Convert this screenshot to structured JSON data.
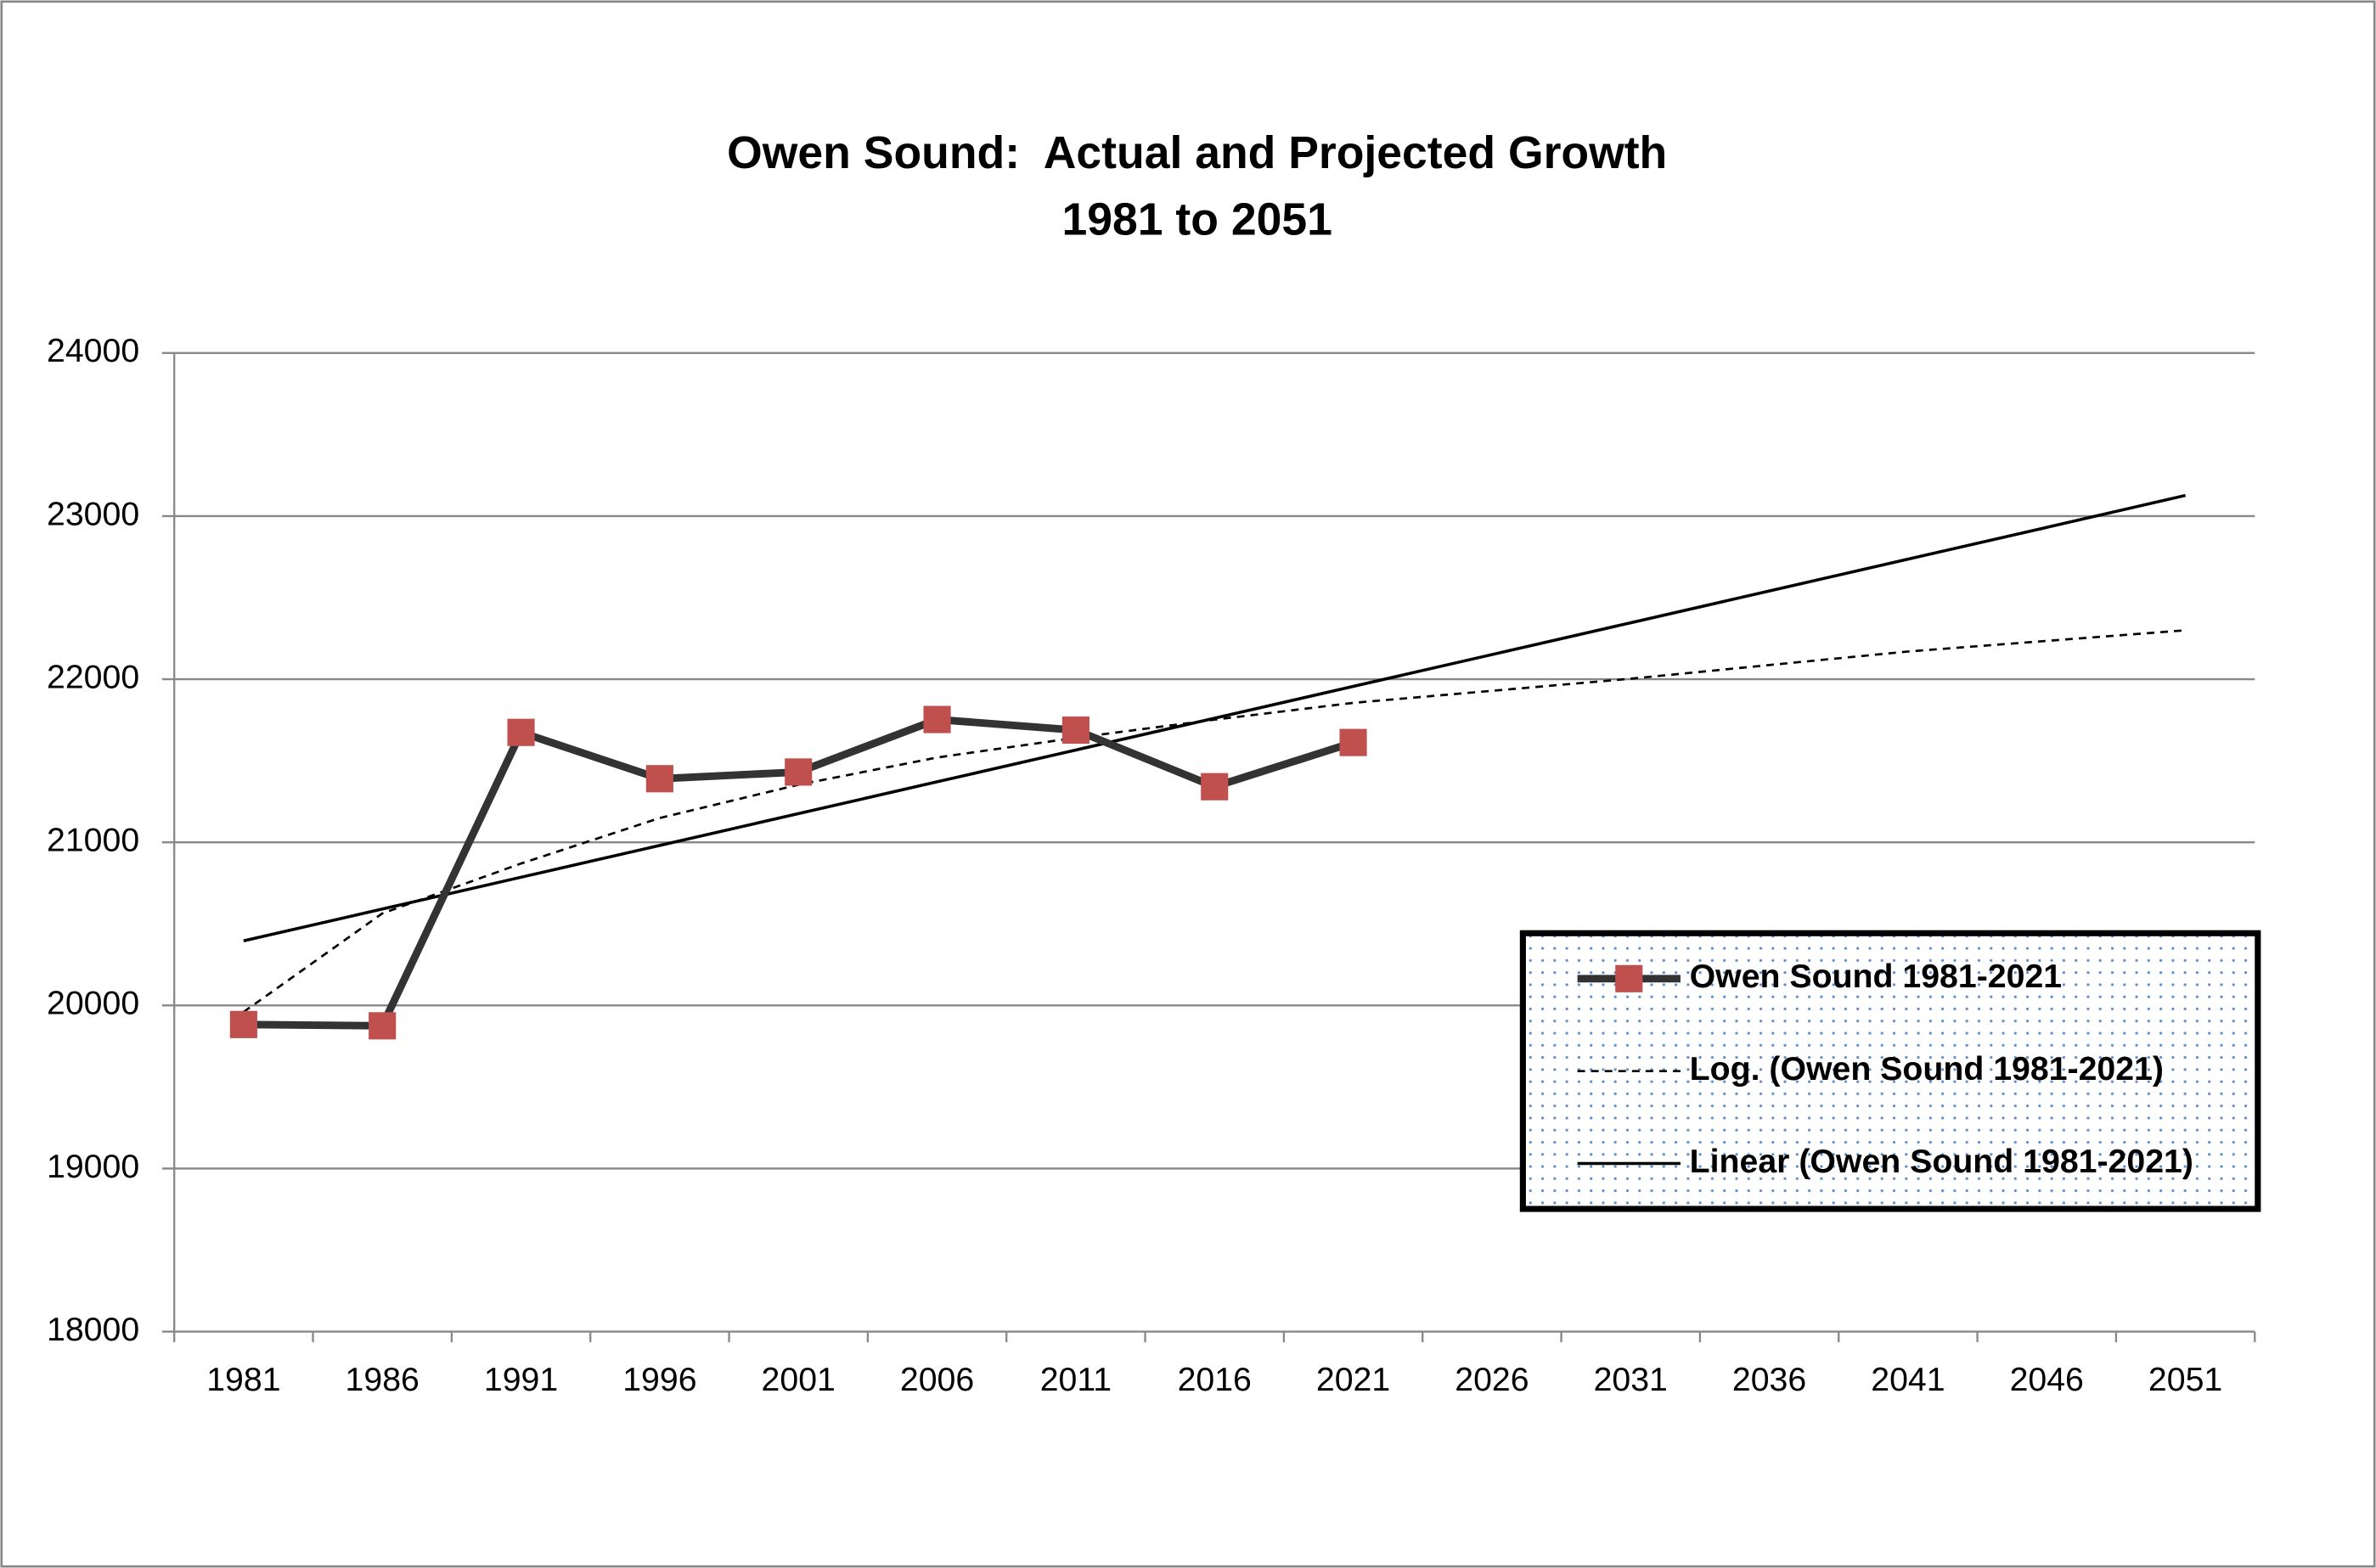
{
  "chart_data": {
    "type": "line",
    "title": [
      "Owen Sound:  Actual and Projected Growth",
      "1981 to 2051"
    ],
    "categories": [
      "1981",
      "1986",
      "1991",
      "1996",
      "2001",
      "2006",
      "2011",
      "2016",
      "2021",
      "2026",
      "2031",
      "2036",
      "2041",
      "2046",
      "2051"
    ],
    "series": [
      {
        "name": "Owen Sound 1981-2021",
        "color": "#333333",
        "marker_color": "#c0504d",
        "line_width": 5,
        "dash": "none",
        "marker": "square",
        "values": [
          19883,
          19875,
          21674,
          21390,
          21431,
          21753,
          21688,
          21341,
          21612,
          null,
          null,
          null,
          null,
          null,
          null
        ]
      },
      {
        "name": "Log. (Owen Sound 1981-2021)",
        "color": "#000000",
        "line_width": 1.5,
        "dash": "5,4",
        "marker": "none",
        "values": [
          19960,
          20564,
          20870,
          21149,
          21353,
          21520,
          21641,
          21752,
          21855,
          21929,
          22003,
          22087,
          22170,
          22235,
          22300
        ]
      },
      {
        "name": "Linear (Owen Sound 1981-2021)",
        "color": "#000000",
        "line_width": 2,
        "dash": "none",
        "marker": "none",
        "values": [
          20396,
          20591,
          20786,
          20981,
          21176,
          21371,
          21566,
          21761,
          21956,
          22151,
          22346,
          22541,
          22736,
          22931,
          23127
        ]
      }
    ],
    "ylim": [
      18000,
      24000
    ],
    "yticks": [
      18000,
      19000,
      20000,
      21000,
      22000,
      23000,
      24000
    ],
    "grid": true,
    "legend": "lower-right"
  }
}
